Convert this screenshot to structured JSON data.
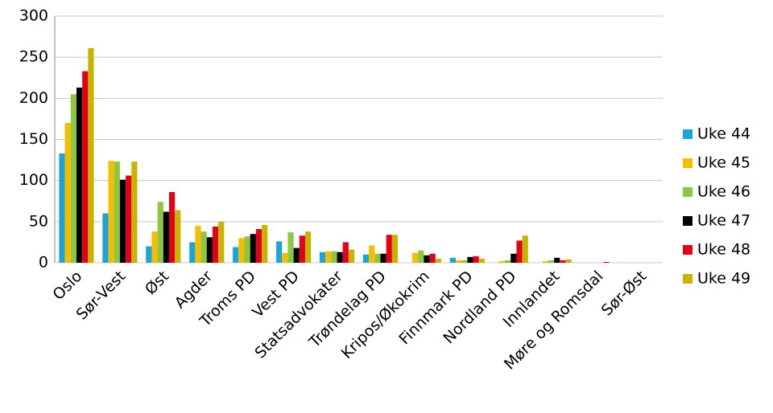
{
  "chart_data": {
    "type": "bar",
    "categories": [
      "Oslo",
      "Sør-Vest",
      "Øst",
      "Agder",
      "Troms PD",
      "Vest PD",
      "Statsadvokater",
      "Trøndelag PD",
      "Kripos/Økokrim",
      "Finnmark PD",
      "Nordland PD",
      "Innlandet",
      "Møre og Romsdal",
      "Sør-Øst"
    ],
    "series": [
      {
        "name": "Uke 44",
        "color": "#1ba3dc",
        "values": [
          133,
          60,
          20,
          25,
          19,
          26,
          13,
          10,
          0,
          6,
          0,
          0,
          0,
          0
        ]
      },
      {
        "name": "Uke 45",
        "color": "#f5bd00",
        "values": [
          170,
          124,
          38,
          45,
          30,
          12,
          14,
          21,
          12,
          3,
          2,
          2,
          0,
          0
        ]
      },
      {
        "name": "Uke 46",
        "color": "#8dc63f",
        "values": [
          205,
          123,
          74,
          38,
          32,
          37,
          14,
          11,
          15,
          3,
          3,
          3,
          0,
          0
        ]
      },
      {
        "name": "Uke 47",
        "color": "#000000",
        "values": [
          213,
          101,
          62,
          31,
          35,
          18,
          13,
          11,
          9,
          7,
          11,
          6,
          0,
          0
        ]
      },
      {
        "name": "Uke 48",
        "color": "#e2001a",
        "values": [
          233,
          106,
          86,
          44,
          41,
          33,
          25,
          34,
          11,
          8,
          27,
          3,
          1,
          0
        ]
      },
      {
        "name": "Uke 49",
        "color": "#c6b500",
        "values": [
          261,
          123,
          64,
          50,
          46,
          38,
          16,
          34,
          5,
          5,
          33,
          4,
          0,
          0
        ]
      }
    ],
    "ylim": [
      0,
      300
    ],
    "yticks": [
      0,
      50,
      100,
      150,
      200,
      250,
      300
    ],
    "grid": true,
    "legend": "right"
  }
}
